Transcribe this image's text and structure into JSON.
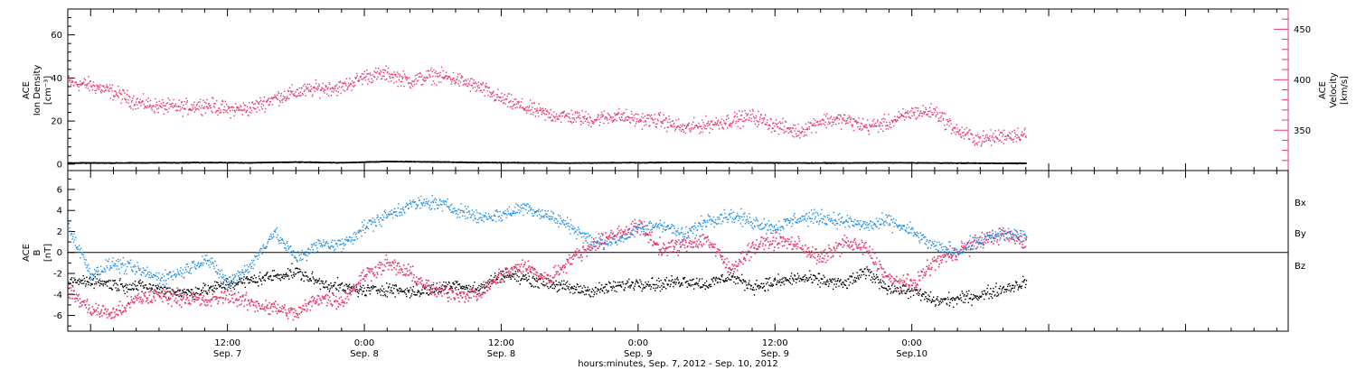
{
  "colors": {
    "axis": "#000000",
    "density": "#000000",
    "velocity": "#e8386a",
    "bx": "#000000",
    "by": "#1f8ee8",
    "bz": "#e8386a"
  },
  "chart_data": [
    {
      "type": "scatter",
      "panel": "top",
      "title": "",
      "left_axis": {
        "label_lines": [
          "ACE",
          "Ion Density",
          "[cm⁻³]"
        ],
        "range": [
          -3,
          72
        ],
        "ticks": [
          0,
          20,
          40,
          60
        ],
        "tick_labels": [
          "0",
          "20",
          "40",
          "60"
        ]
      },
      "right_axis": {
        "label_lines": [
          "ACE",
          "Velocity",
          "[km/s]"
        ],
        "range": [
          310,
          470
        ],
        "ticks": [
          350,
          400,
          450
        ],
        "tick_labels": [
          "350",
          "400",
          "450"
        ]
      },
      "series": [
        {
          "key": "density",
          "axis": "left",
          "x_hours": [
            0,
            4,
            8,
            12,
            16,
            20,
            24,
            28,
            32,
            36,
            40,
            44,
            48,
            52,
            56,
            60,
            64,
            68,
            72,
            76,
            80,
            84
          ],
          "values": [
            0.8,
            0.8,
            0.9,
            1.0,
            0.9,
            1.2,
            0.9,
            1.5,
            1.3,
            1.0,
            0.9,
            0.8,
            0.9,
            1.0,
            1.1,
            0.9,
            0.8,
            0.8,
            0.9,
            0.8,
            0.7,
            0.6
          ]
        },
        {
          "key": "velocity",
          "axis": "right",
          "x_hours": [
            0,
            2,
            4,
            6,
            8,
            10,
            12,
            14,
            16,
            18,
            20,
            22,
            24,
            26,
            28,
            30,
            32,
            34,
            36,
            38,
            40,
            42,
            44,
            46,
            48,
            50,
            52,
            54,
            56,
            58,
            60,
            62,
            64,
            66,
            68,
            70,
            72,
            74,
            76,
            78,
            80,
            82,
            84
          ],
          "values": [
            398,
            395,
            388,
            378,
            374,
            373,
            376,
            371,
            372,
            382,
            388,
            392,
            393,
            404,
            406,
            399,
            405,
            401,
            393,
            381,
            373,
            366,
            364,
            361,
            365,
            361,
            360,
            352,
            356,
            360,
            364,
            355,
            349,
            360,
            361,
            354,
            358,
            368,
            369,
            349,
            341,
            345,
            347
          ]
        }
      ]
    },
    {
      "type": "scatter",
      "panel": "bottom",
      "title": "",
      "left_axis": {
        "label_lines": [
          "ACE",
          "B",
          "[nT]"
        ],
        "range": [
          -7.5,
          7.8
        ],
        "ticks": [
          -6,
          -4,
          -2,
          0,
          2,
          4,
          6
        ],
        "tick_labels": [
          "-6",
          "-4",
          "-2",
          "0",
          "2",
          "4",
          "6"
        ]
      },
      "legend": {
        "placement": "right",
        "entries": [
          "Bx",
          "By",
          "Bz"
        ]
      },
      "series": [
        {
          "key": "bx",
          "name": "Bx",
          "x_hours": [
            0,
            2,
            4,
            6,
            8,
            10,
            12,
            14,
            16,
            18,
            20,
            22,
            24,
            26,
            28,
            30,
            32,
            34,
            36,
            38,
            40,
            42,
            44,
            46,
            48,
            50,
            52,
            54,
            56,
            58,
            60,
            62,
            64,
            66,
            68,
            70,
            72,
            74,
            76,
            78,
            80,
            82,
            84
          ],
          "values": [
            -2.8,
            -2.6,
            -3.0,
            -3.2,
            -3.4,
            -3.8,
            -3.5,
            -3.0,
            -2.6,
            -2.2,
            -1.8,
            -2.8,
            -3.3,
            -3.6,
            -3.4,
            -3.7,
            -3.5,
            -3.0,
            -3.5,
            -2.0,
            -2.4,
            -2.8,
            -3.4,
            -3.6,
            -3.2,
            -2.8,
            -3.0,
            -2.6,
            -3.0,
            -2.2,
            -3.2,
            -2.8,
            -2.4,
            -2.6,
            -3.0,
            -1.8,
            -3.4,
            -3.6,
            -4.6,
            -4.4,
            -4.0,
            -3.4,
            -2.8
          ]
        },
        {
          "key": "by",
          "name": "By",
          "x_hours": [
            0,
            2,
            4,
            6,
            8,
            10,
            12,
            14,
            16,
            18,
            20,
            22,
            24,
            26,
            28,
            30,
            32,
            34,
            36,
            38,
            40,
            42,
            44,
            46,
            48,
            50,
            52,
            54,
            56,
            58,
            60,
            62,
            64,
            66,
            68,
            70,
            72,
            74,
            76,
            78,
            80,
            82,
            84
          ],
          "values": [
            2.5,
            -2.0,
            -1.0,
            -1.6,
            -2.4,
            -1.8,
            -0.5,
            -2.8,
            -1.2,
            2.0,
            -0.5,
            0.8,
            0.8,
            2.5,
            3.6,
            4.6,
            4.8,
            4.2,
            3.4,
            3.6,
            4.4,
            3.6,
            2.6,
            1.0,
            1.2,
            2.2,
            2.8,
            1.6,
            3.2,
            3.6,
            3.0,
            2.4,
            3.3,
            3.4,
            3.0,
            2.6,
            3.0,
            2.0,
            0.5,
            0.2,
            1.2,
            1.8,
            1.6
          ]
        },
        {
          "key": "bz",
          "name": "Bz",
          "x_hours": [
            0,
            2,
            4,
            6,
            8,
            10,
            12,
            14,
            16,
            18,
            20,
            22,
            24,
            26,
            28,
            30,
            32,
            34,
            36,
            38,
            40,
            42,
            44,
            46,
            48,
            50,
            52,
            54,
            56,
            58,
            60,
            62,
            64,
            66,
            68,
            70,
            72,
            74,
            76,
            78,
            80,
            82,
            84
          ],
          "values": [
            -3.6,
            -5.4,
            -5.8,
            -4.4,
            -4.0,
            -4.2,
            -4.6,
            -4.0,
            -4.8,
            -5.2,
            -5.8,
            -4.2,
            -4.6,
            -2.0,
            -1.0,
            -2.0,
            -3.6,
            -3.8,
            -4.0,
            -2.0,
            -1.2,
            -2.6,
            -0.6,
            0.8,
            1.8,
            2.6,
            0.4,
            0.8,
            1.4,
            -1.6,
            0.6,
            1.2,
            0.8,
            -0.6,
            1.0,
            0.4,
            -2.6,
            -3.0,
            -0.8,
            0.2,
            1.2,
            1.8,
            1.0
          ]
        }
      ]
    }
  ],
  "x_axis": {
    "range_hours": [
      0,
      107
    ],
    "major_ticks": [
      {
        "hour": 14,
        "time": "12:00",
        "date": "Sep. 7"
      },
      {
        "hour": 26,
        "time": "0:00",
        "date": "Sep. 8"
      },
      {
        "hour": 38,
        "time": "12:00",
        "date": "Sep. 8"
      },
      {
        "hour": 50,
        "time": "0:00",
        "date": "Sep. 9"
      },
      {
        "hour": 62,
        "time": "12:00",
        "date": "Sep. 9"
      },
      {
        "hour": 74,
        "time": "0:00",
        "date": "Sep.10"
      }
    ],
    "title": "hours:minutes, Sep.  7, 2012 - Sep. 10, 2012"
  }
}
